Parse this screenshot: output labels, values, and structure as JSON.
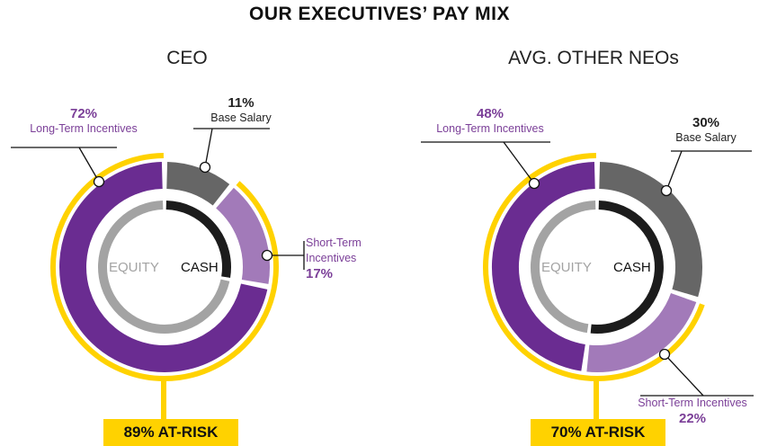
{
  "title": "OUR EXECUTIVES’ PAY MIX",
  "colors": {
    "purple": "#6a2c91",
    "light_purple": "#a27ab9",
    "dark_gray": "#666666",
    "gray": "#a3a3a3",
    "black": "#1c1c1c",
    "yellow": "#ffd200",
    "label_purple": "#7b3f98"
  },
  "chart_data": [
    {
      "type": "pie",
      "title": "CEO",
      "center_labels": {
        "left": "EQUITY",
        "right": "CASH"
      },
      "slices": [
        {
          "name": "Base Salary",
          "value": 11,
          "percent_label": "11%",
          "category": "cash"
        },
        {
          "name": "Short-Term Incentives",
          "value": 17,
          "percent_label": "17%",
          "category": "cash"
        },
        {
          "name": "Long-Term Incentives",
          "value": 72,
          "percent_label": "72%",
          "category": "equity"
        }
      ],
      "inner_ring": {
        "cash": 28,
        "equity": 72
      },
      "at_risk": {
        "value": 89,
        "label": "89% AT-RISK"
      }
    },
    {
      "type": "pie",
      "title": "AVG. OTHER NEOs",
      "center_labels": {
        "left": "EQUITY",
        "right": "CASH"
      },
      "slices": [
        {
          "name": "Base Salary",
          "value": 30,
          "percent_label": "30%",
          "category": "cash"
        },
        {
          "name": "Short-Term Incentives",
          "value": 22,
          "percent_label": "22%",
          "category": "cash"
        },
        {
          "name": "Long-Term Incentives",
          "value": 48,
          "percent_label": "48%",
          "category": "equity"
        }
      ],
      "inner_ring": {
        "cash": 52,
        "equity": 48
      },
      "at_risk": {
        "value": 70,
        "label": "70% AT-RISK"
      }
    }
  ]
}
